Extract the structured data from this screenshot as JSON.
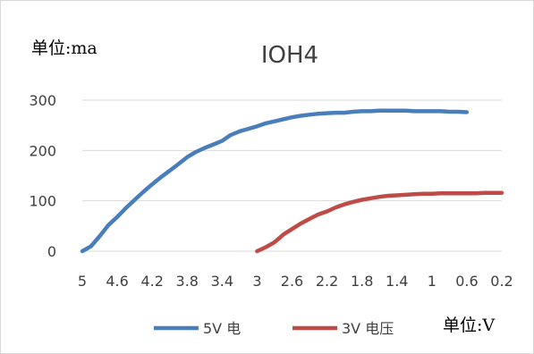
{
  "chart_data": {
    "type": "line",
    "title": "IOH4",
    "ylabel": "单位:ma",
    "xlabel": "单位:V",
    "ylim": [
      0,
      300
    ],
    "y_ticks": [
      0,
      100,
      200,
      300
    ],
    "x_reversed": true,
    "x_ticks": [
      "5",
      "4.6",
      "4.2",
      "3.8",
      "3.4",
      "3",
      "2.6",
      "2.2",
      "1.8",
      "1.4",
      "1",
      "0.6",
      "0.2"
    ],
    "grid": true,
    "legend": "bottom",
    "series": [
      {
        "name": "5V 电",
        "color": "#4a7ebb",
        "x": [
          5,
          4.9,
          4.8,
          4.7,
          4.6,
          4.5,
          4.4,
          4.3,
          4.2,
          4.1,
          4.0,
          3.9,
          3.8,
          3.7,
          3.6,
          3.5,
          3.4,
          3.3,
          3.2,
          3.1,
          3.0,
          2.9,
          2.8,
          2.7,
          2.6,
          2.5,
          2.4,
          2.3,
          2.2,
          2.1,
          2.0,
          1.9,
          1.8,
          1.7,
          1.6,
          1.5,
          1.4,
          1.3,
          1.2,
          1.1,
          1.0,
          0.9,
          0.8,
          0.7,
          0.6
        ],
        "y": [
          0,
          10,
          30,
          52,
          68,
          86,
          102,
          118,
          133,
          147,
          160,
          173,
          187,
          197,
          205,
          212,
          219,
          231,
          238,
          243,
          248,
          254,
          258,
          262,
          266,
          269,
          271,
          273,
          274,
          275,
          275,
          277,
          278,
          278,
          279,
          279,
          279,
          279,
          278,
          278,
          278,
          278,
          277,
          277,
          276
        ]
      },
      {
        "name": "3V 电压",
        "color": "#be4b48",
        "x": [
          3.0,
          2.9,
          2.8,
          2.7,
          2.6,
          2.5,
          2.4,
          2.3,
          2.2,
          2.1,
          2.0,
          1.9,
          1.8,
          1.7,
          1.6,
          1.5,
          1.4,
          1.3,
          1.2,
          1.1,
          1.0,
          0.9,
          0.8,
          0.7,
          0.6,
          0.5,
          0.4,
          0.3,
          0.2
        ],
        "y": [
          0,
          8,
          18,
          33,
          44,
          55,
          64,
          73,
          79,
          87,
          93,
          98,
          102,
          105,
          108,
          110,
          111,
          112,
          113,
          114,
          114,
          115,
          115,
          115,
          115,
          115,
          116,
          116,
          116
        ]
      }
    ]
  }
}
